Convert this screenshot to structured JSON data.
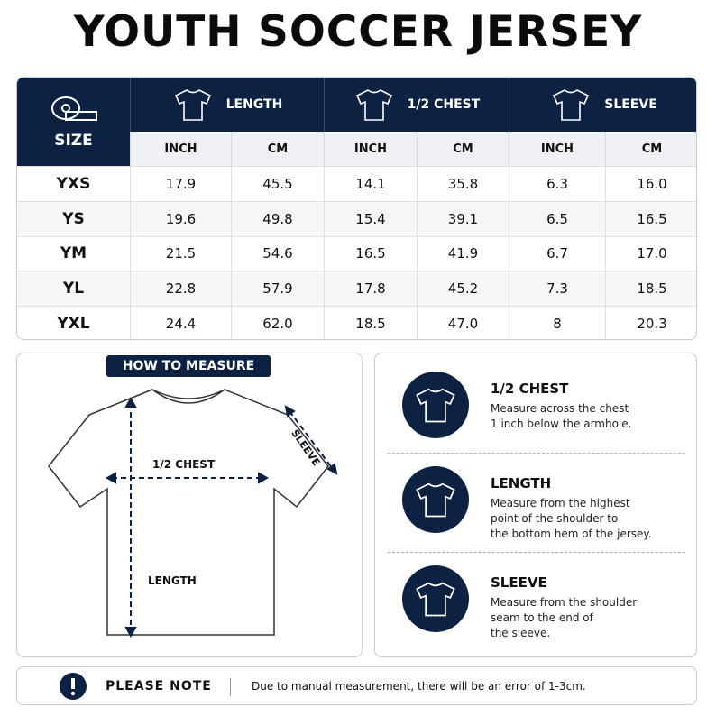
{
  "header": {
    "title": "YOUTH SOCCER JERSEY"
  },
  "table": {
    "size_label": "SIZE",
    "groups": [
      "LENGTH",
      "1/2 CHEST",
      "SLEEVE"
    ],
    "units": [
      "INCH",
      "CM",
      "INCH",
      "CM",
      "INCH",
      "CM"
    ],
    "rows": [
      [
        "YXS",
        "17.9",
        "45.5",
        "14.1",
        "35.8",
        "6.3",
        "16.0"
      ],
      [
        "YS",
        "19.6",
        "49.8",
        "15.4",
        "39.1",
        "6.5",
        "16.5"
      ],
      [
        "YM",
        "21.5",
        "54.6",
        "16.5",
        "41.9",
        "6.7",
        "17.0"
      ],
      [
        "YL",
        "22.8",
        "57.9",
        "17.8",
        "45.2",
        "7.3",
        "18.5"
      ],
      [
        "YXL",
        "24.4",
        "62.0",
        "18.5",
        "47.0",
        "8",
        "20.3"
      ]
    ]
  },
  "how_to_measure": {
    "title": "HOW TO MEASURE",
    "sleeve": "SLEEVE",
    "chest": "1/2 CHEST",
    "length": "LENGTH"
  },
  "instructions": [
    {
      "title": "1/2 CHEST",
      "lines": [
        "Measure across the chest",
        "1 inch below the armhole."
      ]
    },
    {
      "title": "LENGTH",
      "lines": [
        "Measure from the highest",
        "point of the shoulder to",
        "the bottom hem of the jersey."
      ]
    },
    {
      "title": "SLEEVE",
      "lines": [
        "Measure from the shoulder",
        "seam to the end of",
        "the sleeve."
      ]
    }
  ],
  "note": {
    "title": "PLEASE NOTE",
    "text": "Due to manual measurement, there will be an error of 1-3cm."
  }
}
